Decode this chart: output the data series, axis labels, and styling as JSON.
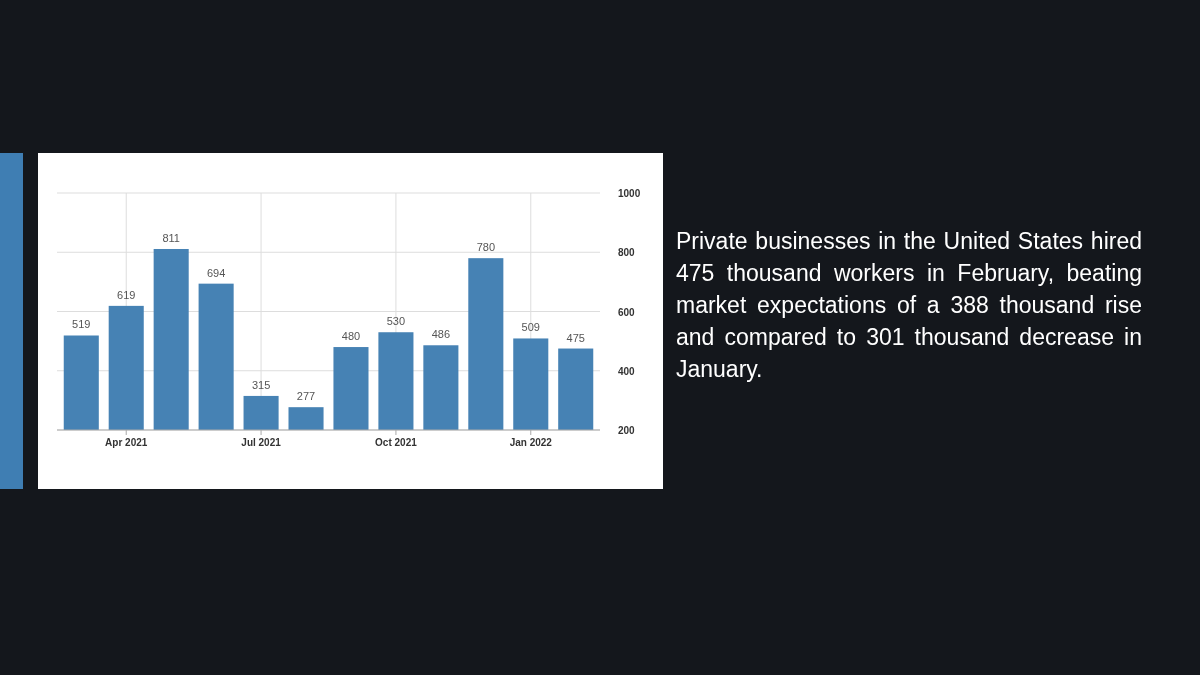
{
  "chart_data": {
    "type": "bar",
    "categories": [
      null,
      "Apr 2021",
      null,
      null,
      "Jul 2021",
      null,
      null,
      "Oct 2021",
      null,
      null,
      "Jan 2022",
      null
    ],
    "values": [
      519,
      619,
      811,
      694,
      315,
      277,
      480,
      530,
      486,
      780,
      509,
      475
    ],
    "color": "#4682b4",
    "ylim": [
      200,
      1000
    ],
    "yticks": [
      200,
      400,
      600,
      800,
      1000
    ],
    "grid": true,
    "data_labels": true,
    "annotations": [
      "Private businesses in the United States hired 475 thousand workers in February, beating market expectations of a 388 thousand rise and compared to 301 thousand decrease in January."
    ]
  }
}
